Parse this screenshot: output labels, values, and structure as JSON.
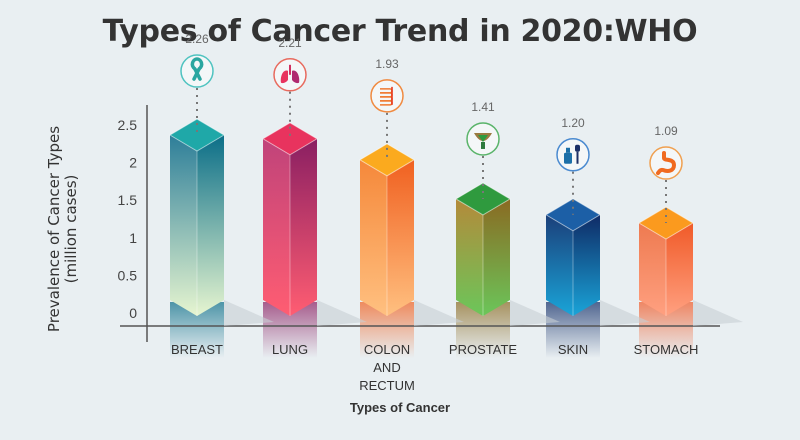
{
  "chart_data": {
    "type": "bar",
    "title": "Types of Cancer Trend in 2020:WHO",
    "xlabel": "Types of Cancer",
    "ylabel": [
      "Prevalence of Cancer Types",
      "(million cases)"
    ],
    "ylim": [
      0,
      2.5
    ],
    "yticks": [
      "0",
      "0.5",
      "1",
      "1.5",
      "2",
      "2.5"
    ],
    "ytick_values": [
      0,
      0.5,
      1,
      1.5,
      2,
      2.5
    ],
    "grid": false,
    "legend": "none",
    "categories": [
      {
        "label": [
          "BREAST"
        ],
        "icon": "ribbon-icon"
      },
      {
        "label": [
          "LUNG"
        ],
        "icon": "lungs-icon"
      },
      {
        "label": [
          "COLON",
          "AND",
          "RECTUM"
        ],
        "icon": "intestine-icon"
      },
      {
        "label": [
          "PROSTATE"
        ],
        "icon": "prostate-icon"
      },
      {
        "label": [
          "SKIN"
        ],
        "icon": "dropper-bottle-icon"
      },
      {
        "label": [
          "STOMACH"
        ],
        "icon": "stomach-icon"
      }
    ],
    "values": [
      2.26,
      2.21,
      1.93,
      1.41,
      1.2,
      1.09
    ],
    "value_labels": [
      "2.26",
      "2.21",
      "1.93",
      "1.41",
      "1.20",
      "1.09"
    ],
    "colors": [
      {
        "top": "#1fa8a8",
        "left": "#2d7e99",
        "right": "#0b6e88",
        "bottom": "#e6f5d0",
        "ring": "#4fc3c0"
      },
      {
        "top": "#e8335e",
        "left": "#c0437a",
        "right": "#8a1f62",
        "bottom": "#ff5d72",
        "ring": "#e86a5e"
      },
      {
        "top": "#fbaa1e",
        "left": "#f5883a",
        "right": "#f06020",
        "bottom": "#ffc080",
        "ring": "#f08a40"
      },
      {
        "top": "#2f9a3e",
        "left": "#b48a3a",
        "right": "#8a6a22",
        "bottom": "#6bc65a",
        "ring": "#5ab46a"
      },
      {
        "top": "#1c5fa6",
        "left": "#1b3f7a",
        "right": "#0f2b66",
        "bottom": "#1aa4d8",
        "ring": "#4a8ad0"
      },
      {
        "top": "#fb9a1e",
        "left": "#ee7a50",
        "right": "#f05a28",
        "bottom": "#ffa080",
        "ring": "#f0a050"
      }
    ]
  }
}
